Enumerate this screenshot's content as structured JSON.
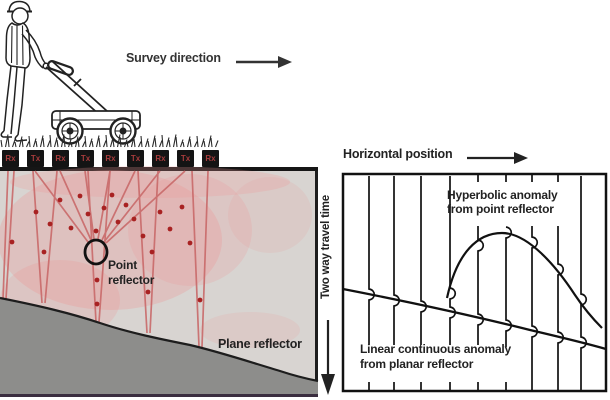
{
  "left": {
    "survey_direction": "Survey direction",
    "antennas": [
      "Rx",
      "Tx",
      "Rx",
      "Tx",
      "Rx",
      "Tx",
      "Rx",
      "Tx",
      "Rx"
    ],
    "point_reflector_label": [
      "Point",
      "reflector"
    ],
    "plane_reflector_label": "Plane reflector"
  },
  "right": {
    "horizontal_position": "Horizontal position",
    "vertical_axis": "Two way travel time",
    "hyperbolic_label": [
      "Hyperbolic anomaly",
      "from point reflector"
    ],
    "linear_label": [
      "Linear continuous anomaly",
      "from planar reflector"
    ]
  },
  "colors": {
    "ray": "#c96a6a",
    "ray_dot": "#a82222",
    "antenna_label": "#a63c3c",
    "ground": "#d8d4d1",
    "bedrock": "#8d8d8b",
    "bottom_bar": "#3a2d3f",
    "line_art": "#222222"
  }
}
